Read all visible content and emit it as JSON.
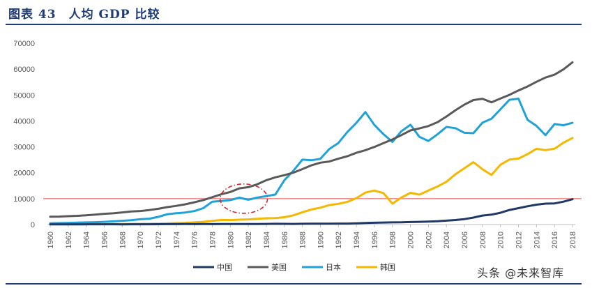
{
  "header": {
    "title": "图表 43　人均 GDP 比较"
  },
  "watermark": "头条 @未来智库",
  "colors": {
    "china": "#1f3864",
    "usa": "#595959",
    "japan": "#1fa2d9",
    "korea": "#f5b800",
    "reference_line": "#f08080",
    "highlight_circle": "#d9262e",
    "rule": "#1f3c7a"
  },
  "chart_data": {
    "type": "line",
    "title": "人均 GDP 比较",
    "xlabel": "",
    "ylabel": "",
    "ylim": [
      0,
      70000
    ],
    "yticks": [
      0,
      10000,
      20000,
      30000,
      40000,
      50000,
      60000,
      70000
    ],
    "ytick_labels": [
      "0",
      "10000",
      "20000",
      "30000",
      "40000",
      "50000",
      "60000",
      "70000"
    ],
    "xlim": [
      1960,
      2018
    ],
    "xticks": [
      1960,
      1962,
      1964,
      1966,
      1968,
      1970,
      1972,
      1974,
      1976,
      1978,
      1980,
      1982,
      1984,
      1986,
      1988,
      1990,
      1992,
      1994,
      1996,
      1998,
      2000,
      2002,
      2004,
      2006,
      2008,
      2010,
      2012,
      2014,
      2016,
      2018
    ],
    "xtick_labels": [
      "1960",
      "1962",
      "1964",
      "1966",
      "1968",
      "1970",
      "1972",
      "1974",
      "1976",
      "1978",
      "1980",
      "1982",
      "1984",
      "1986",
      "1988",
      "1990",
      "1992",
      "1994",
      "1996",
      "1998",
      "2000",
      "2002",
      "2004",
      "2006",
      "2008",
      "2010",
      "2012",
      "2014",
      "2016",
      "2018"
    ],
    "grid": false,
    "legend_position": "bottom",
    "x": [
      1960,
      1961,
      1962,
      1963,
      1964,
      1965,
      1966,
      1967,
      1968,
      1969,
      1970,
      1971,
      1972,
      1973,
      1974,
      1975,
      1976,
      1977,
      1978,
      1979,
      1980,
      1981,
      1982,
      1983,
      1984,
      1985,
      1986,
      1987,
      1988,
      1989,
      1990,
      1991,
      1992,
      1993,
      1994,
      1995,
      1996,
      1997,
      1998,
      1999,
      2000,
      2001,
      2002,
      2003,
      2004,
      2005,
      2006,
      2007,
      2008,
      2009,
      2010,
      2011,
      2012,
      2013,
      2014,
      2015,
      2016,
      2017,
      2018
    ],
    "series": [
      {
        "name": "中国",
        "values": [
          90,
          76,
          70,
          74,
          85,
          98,
          104,
          96,
          91,
          99,
          113,
          119,
          132,
          157,
          160,
          178,
          165,
          185,
          156,
          184,
          195,
          197,
          203,
          225,
          250,
          294,
          281,
          252,
          284,
          310,
          318,
          333,
          366,
          377,
          473,
          610,
          709,
          782,
          829,
          873,
          959,
          1053,
          1149,
          1289,
          1509,
          1753,
          2099,
          2694,
          3468,
          3832,
          4550,
          5618,
          6317,
          7051,
          7679,
          8067,
          8148,
          8827,
          9771
        ]
      },
      {
        "name": "美国",
        "values": [
          3007,
          3067,
          3244,
          3375,
          3574,
          3828,
          4146,
          4336,
          4696,
          5032,
          5234,
          5609,
          6094,
          6726,
          7226,
          7801,
          8592,
          9453,
          10565,
          11674,
          12575,
          13976,
          14434,
          15544,
          17121,
          18237,
          19071,
          20039,
          21417,
          22857,
          23889,
          24342,
          25419,
          26387,
          27695,
          28691,
          29968,
          31459,
          32854,
          34516,
          36335,
          37133,
          38023,
          39497,
          41713,
          44115,
          46300,
          48051,
          48570,
          47195,
          48651,
          50066,
          51784,
          53291,
          55124,
          56763,
          57867,
          59928,
          62641
        ]
      },
      {
        "name": "日本",
        "values": [
          479,
          564,
          633,
          718,
          836,
          920,
          1058,
          1228,
          1450,
          1669,
          2037,
          2272,
          2967,
          3997,
          4354,
          4659,
          5198,
          6335,
          8821,
          9105,
          9463,
          10361,
          9578,
          10425,
          10984,
          11585,
          17112,
          20745,
          25052,
          24813,
          25371,
          29184,
          31465,
          35766,
          39269,
          43440,
          38437,
          34913,
          31902,
          36027,
          38532,
          33846,
          32289,
          34808,
          37689,
          37218,
          35434,
          35275,
          39339,
          40855,
          44508,
          48168,
          48603,
          40454,
          38109,
          34524,
          38794,
          38332,
          39287
        ]
      },
      {
        "name": "韩国",
        "values": [
          158,
          94,
          106,
          146,
          124,
          109,
          133,
          161,
          198,
          243,
          279,
          301,
          324,
          407,
          563,
          616,
          830,
          1055,
          1405,
          1784,
          1715,
          1883,
          1993,
          2199,
          2413,
          2482,
          2835,
          3555,
          4748,
          5818,
          6516,
          7523,
          8002,
          8741,
          10206,
          12333,
          13138,
          12132,
          8085,
          10409,
          12257,
          11561,
          13165,
          14673,
          16496,
          19403,
          21743,
          24086,
          21350,
          19144,
          23087,
          25096,
          25467,
          27178,
          29242,
          28732,
          29288,
          31617,
          33429
        ]
      }
    ],
    "reference_line": {
      "y": 10000
    },
    "annotation": {
      "type": "dashed-ellipse",
      "x_center": 1981.5,
      "y_center": 10000
    }
  }
}
